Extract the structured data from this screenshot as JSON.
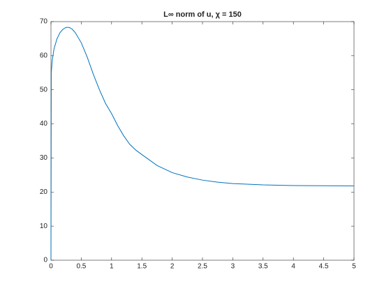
{
  "chart_data": {
    "type": "line",
    "title": "L∞ norm of u, χ = 150",
    "x": [
      0,
      0.005,
      0.02,
      0.05,
      0.1,
      0.15,
      0.2,
      0.25,
      0.3,
      0.35,
      0.4,
      0.5,
      0.6,
      0.7,
      0.8,
      0.9,
      1.0,
      1.1,
      1.2,
      1.3,
      1.4,
      1.5,
      1.75,
      2,
      2.25,
      2.5,
      2.75,
      3,
      3.5,
      4,
      4.5,
      5
    ],
    "series": [
      {
        "color": "#0072bd",
        "values": [
          0,
          55,
          58.5,
          62,
          65,
          66.8,
          67.8,
          68.3,
          68.3,
          67.8,
          66.8,
          63.8,
          59.5,
          54.5,
          50,
          46,
          43,
          39.5,
          36.5,
          34,
          32.3,
          31,
          27.8,
          25.7,
          24.4,
          23.5,
          22.9,
          22.5,
          22.1,
          21.9,
          21.85,
          21.8
        ]
      }
    ],
    "xlim": [
      0,
      5
    ],
    "xticks": [
      0,
      0.5,
      1,
      1.5,
      2,
      2.5,
      3,
      3.5,
      4,
      4.5,
      5
    ],
    "ylim": [
      0,
      70
    ],
    "yticks": [
      0,
      10,
      20,
      30,
      40,
      50,
      60,
      70
    ],
    "grid": false
  }
}
